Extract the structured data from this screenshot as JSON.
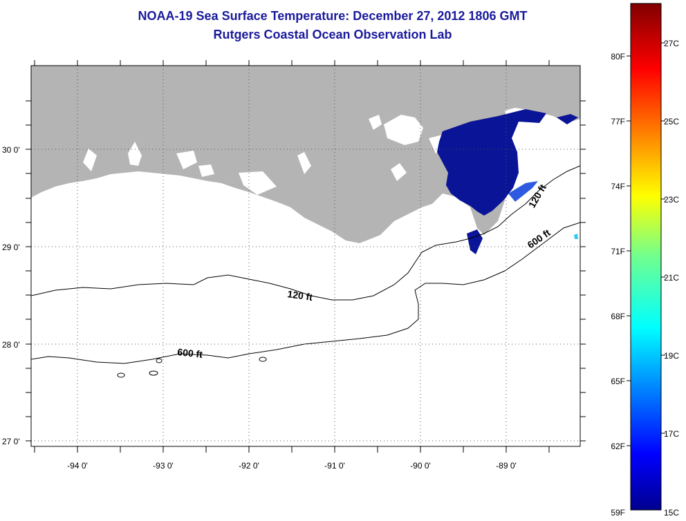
{
  "title": {
    "line1": "NOAA-19 Sea Surface Temperature:  December 27, 2012 1806 GMT",
    "line2": "Rutgers Coastal Ocean Observation Lab"
  },
  "axes": {
    "lat_labels": [
      "30 0'",
      "29 0'",
      "28 0'",
      "27 0'"
    ],
    "lon_labels": [
      "-94 0'",
      "-93 0'",
      "-92 0'",
      "-91 0'",
      "-90 0'",
      "-89 0'"
    ]
  },
  "contours": {
    "shallow": "120 ft",
    "deep": "600 ft"
  },
  "colorbar": {
    "fahrenheit_labels": [
      "80F",
      "77F",
      "74F",
      "71F",
      "68F",
      "65F",
      "62F",
      "59F"
    ],
    "celsius_labels": [
      "27C",
      "25C",
      "23C",
      "21C",
      "19C",
      "17C",
      "15C"
    ]
  },
  "colors": {
    "title": "#1a1a9c",
    "land": "#b4b4b4",
    "water": "#ffffff",
    "sst_cold": "#0a1496"
  }
}
